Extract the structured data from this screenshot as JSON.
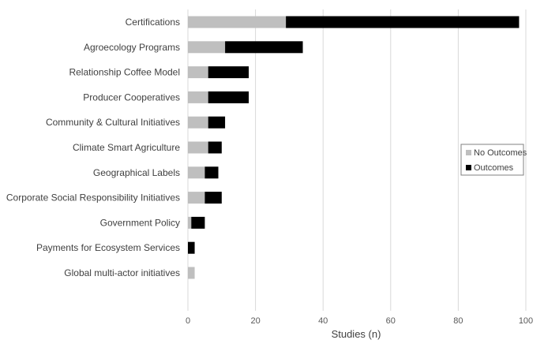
{
  "chart_data": {
    "type": "bar",
    "orientation": "horizontal",
    "stacked": true,
    "categories": [
      "Certifications",
      "Agroecology Programs",
      "Relationship Coffee Model",
      "Producer Cooperatives",
      "Community & Cultural Initiatives",
      "Climate Smart Agriculture",
      "Geographical Labels",
      "Corporate Social Responsibility Initiatives",
      "Government Policy",
      "Payments for Ecosystem Services",
      "Global multi-actor initiatives"
    ],
    "series": [
      {
        "name": "No Outcomes",
        "color": "#bfbfbf",
        "values": [
          29,
          11,
          6,
          6,
          6,
          6,
          5,
          5,
          1,
          0,
          2
        ]
      },
      {
        "name": "Outcomes",
        "color": "#000000",
        "values": [
          69,
          23,
          12,
          12,
          5,
          4,
          4,
          5,
          4,
          2,
          0
        ]
      }
    ],
    "xlabel": "Studies (n)",
    "xlim": [
      0,
      100
    ],
    "xticks": [
      0,
      20,
      40,
      60,
      80,
      100
    ],
    "grid": "vertical",
    "legend_position": "right"
  }
}
